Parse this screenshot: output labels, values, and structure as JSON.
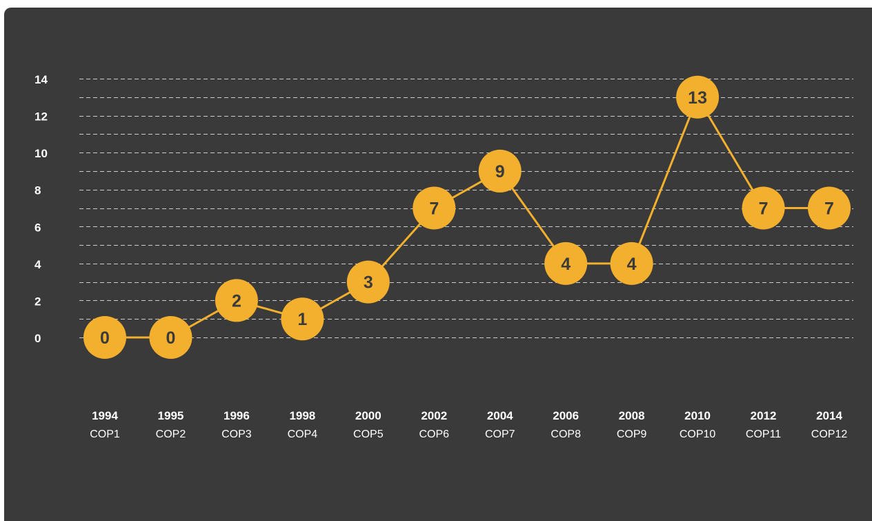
{
  "chart_data": {
    "type": "line",
    "title": "",
    "xlabel": "",
    "ylabel": "",
    "ylim": [
      0,
      14
    ],
    "y_ticks": [
      "14",
      "12",
      "10",
      "8",
      "6",
      "4",
      "2",
      "0"
    ],
    "grid": true,
    "categories": [
      "1994",
      "1995",
      "1996",
      "1998",
      "2000",
      "2002",
      "2004",
      "2006",
      "2008",
      "2010",
      "2012",
      "2014"
    ],
    "sub_categories": [
      "COP1",
      "COP2",
      "COP3",
      "COP4",
      "COP5",
      "COP6",
      "COP7",
      "COP8",
      "COP9",
      "COP10",
      "COP11",
      "COP12"
    ],
    "series": [
      {
        "values": [
          0,
          0,
          2,
          1,
          3,
          7,
          9,
          4,
          4,
          13,
          7,
          7
        ],
        "labels": [
          "0",
          "0",
          "2",
          "1",
          "3",
          "7",
          "9",
          "4",
          "4",
          "13",
          "7",
          "7"
        ]
      }
    ]
  },
  "colors": {
    "background": "#3a3a3a",
    "accent": "#f2b02e",
    "grid": "#cfcfcf",
    "label_on_marker": "#3a3a3a",
    "axis_text": "#ffffff"
  }
}
